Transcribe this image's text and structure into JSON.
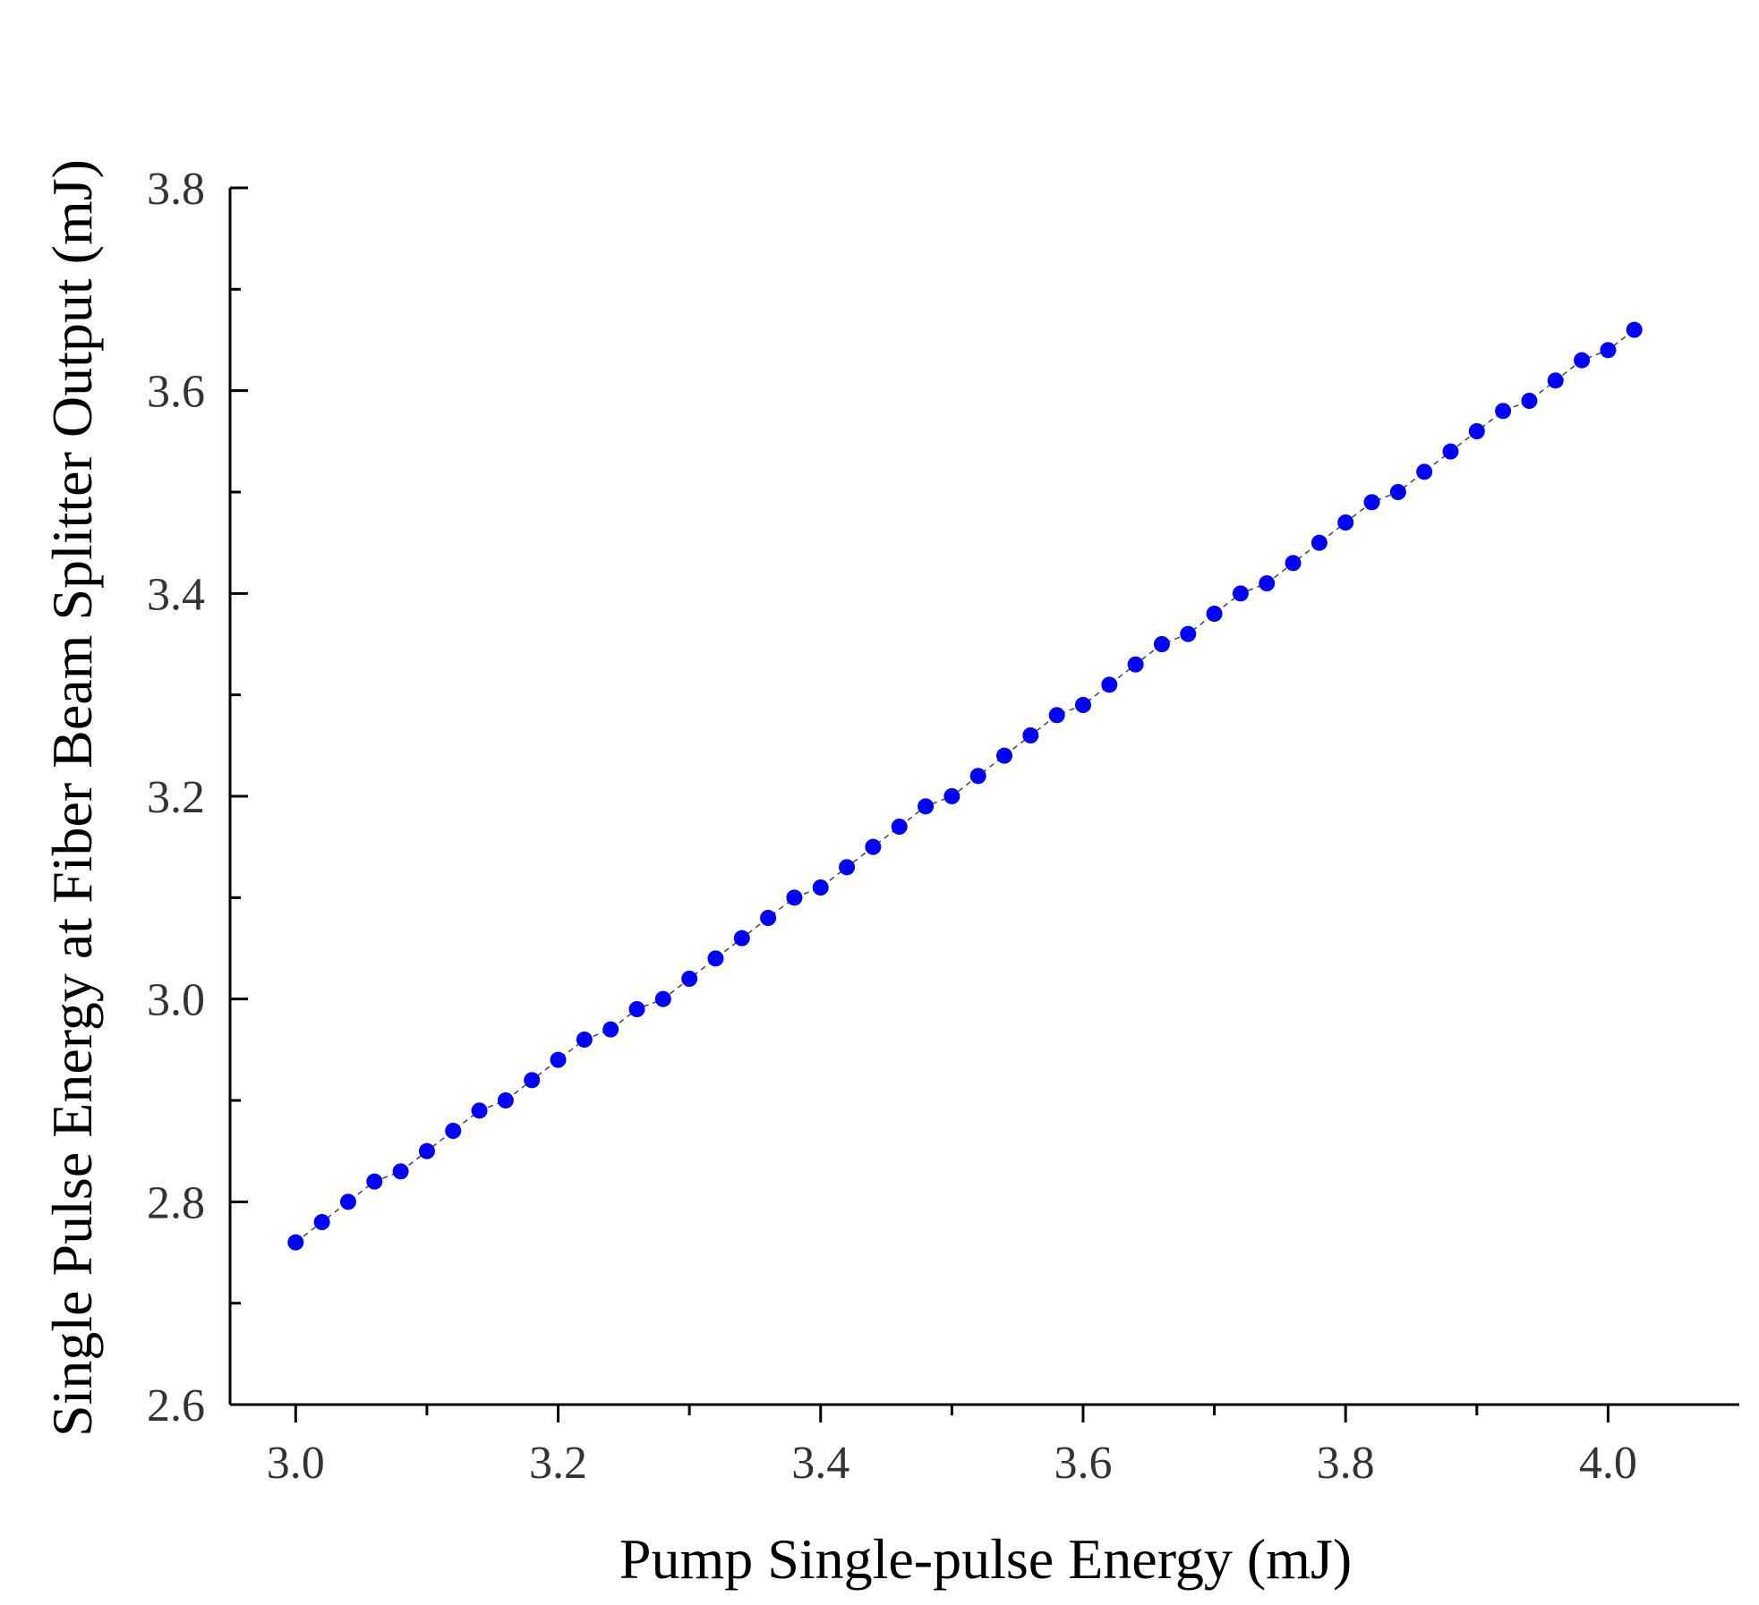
{
  "chart_data": {
    "type": "scatter",
    "title": "",
    "xlabel": "Pump Single-pulse Energy (mJ)",
    "ylabel": "Single Pulse Energy at Fiber Beam Splitter Output (mJ)",
    "xlim": [
      2.95,
      4.1
    ],
    "ylim": [
      2.6,
      3.8
    ],
    "xticks": [
      "3.0",
      "3.2",
      "3.4",
      "3.6",
      "3.8",
      "4.0"
    ],
    "yticks": [
      "2.6",
      "2.8",
      "3.0",
      "3.2",
      "3.4",
      "3.6",
      "3.8"
    ],
    "grid": false,
    "legend": "none",
    "series": [
      {
        "name": "Fiber beam splitter output",
        "color": "#0000ff",
        "line_style": "dashed",
        "x": [
          3.0,
          3.02,
          3.04,
          3.06,
          3.08,
          3.1,
          3.12,
          3.14,
          3.16,
          3.18,
          3.2,
          3.22,
          3.24,
          3.26,
          3.28,
          3.3,
          3.32,
          3.34,
          3.36,
          3.38,
          3.4,
          3.42,
          3.44,
          3.46,
          3.48,
          3.5,
          3.52,
          3.54,
          3.56,
          3.58,
          3.6,
          3.62,
          3.64,
          3.66,
          3.68,
          3.7,
          3.72,
          3.74,
          3.76,
          3.78,
          3.8,
          3.82,
          3.84,
          3.86,
          3.88,
          3.9,
          3.92,
          3.94,
          3.96,
          3.98,
          4.0,
          4.02
        ],
        "y": [
          2.76,
          2.78,
          2.8,
          2.82,
          2.83,
          2.85,
          2.87,
          2.89,
          2.9,
          2.92,
          2.94,
          2.96,
          2.97,
          2.99,
          3.0,
          3.02,
          3.04,
          3.06,
          3.08,
          3.1,
          3.11,
          3.13,
          3.15,
          3.17,
          3.19,
          3.2,
          3.22,
          3.24,
          3.26,
          3.28,
          3.29,
          3.31,
          3.33,
          3.35,
          3.36,
          3.38,
          3.4,
          3.41,
          3.43,
          3.45,
          3.47,
          3.49,
          3.5,
          3.52,
          3.54,
          3.56,
          3.58,
          3.59,
          3.61,
          3.63,
          3.64,
          3.66
        ]
      }
    ]
  }
}
